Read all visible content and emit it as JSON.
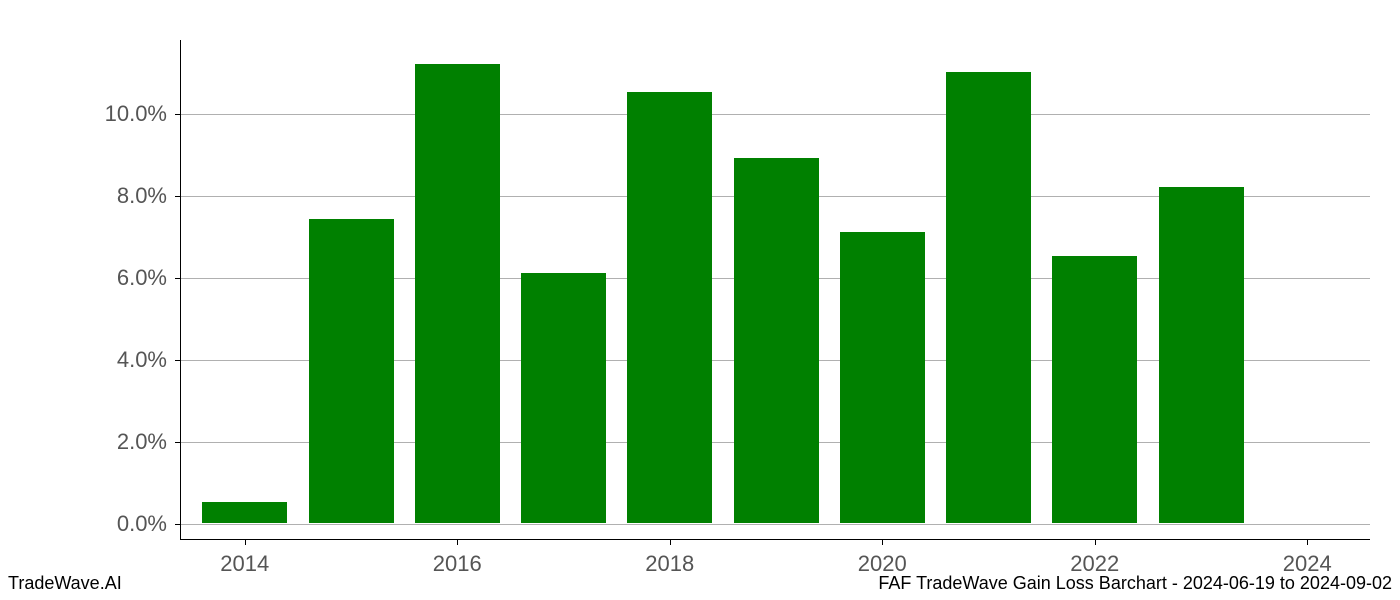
{
  "chart": {
    "type": "bar",
    "background_color": "#ffffff",
    "bar_color": "#008000",
    "grid_color": "#b0b0b0",
    "axis_color": "#000000",
    "tick_label_color": "#555555",
    "tick_fontsize": 22,
    "y": {
      "min": -0.4,
      "max": 11.8,
      "ticks": [
        0.0,
        2.0,
        4.0,
        6.0,
        8.0,
        10.0
      ],
      "tick_labels": [
        "0.0%",
        "2.0%",
        "4.0%",
        "6.0%",
        "8.0%",
        "10.0%"
      ]
    },
    "x": {
      "min": 2013.4,
      "max": 2024.6,
      "ticks": [
        2014,
        2016,
        2018,
        2020,
        2022,
        2024
      ],
      "tick_labels": [
        "2014",
        "2016",
        "2018",
        "2020",
        "2022",
        "2024"
      ]
    },
    "bar_width": 0.8,
    "data": [
      {
        "year": 2014,
        "value": 0.5
      },
      {
        "year": 2015,
        "value": 7.4
      },
      {
        "year": 2016,
        "value": 11.2
      },
      {
        "year": 2017,
        "value": 6.1
      },
      {
        "year": 2018,
        "value": 10.5
      },
      {
        "year": 2019,
        "value": 8.9
      },
      {
        "year": 2020,
        "value": 7.1
      },
      {
        "year": 2021,
        "value": 11.0
      },
      {
        "year": 2022,
        "value": 6.5
      },
      {
        "year": 2023,
        "value": 8.2
      }
    ]
  },
  "footer": {
    "left": "TradeWave.AI",
    "right": "FAF TradeWave Gain Loss Barchart - 2024-06-19 to 2024-09-02"
  }
}
